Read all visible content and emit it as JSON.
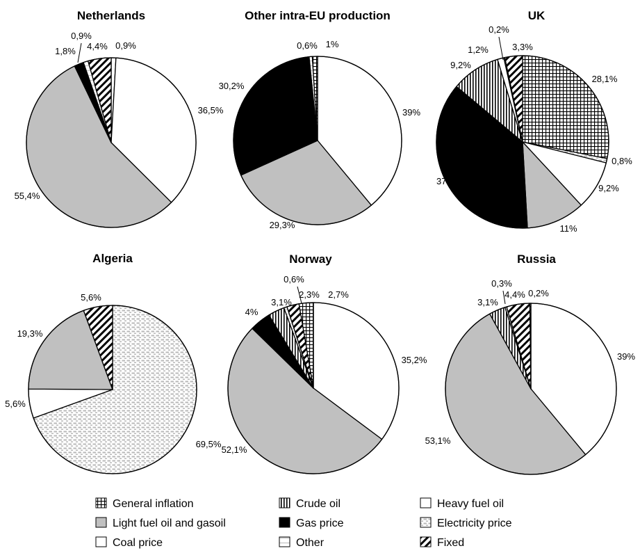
{
  "legend_items": [
    {
      "key": "general_inflation",
      "label": "General inflation"
    },
    {
      "key": "crude_oil",
      "label": "Crude oil"
    },
    {
      "key": "heavy_fuel_oil",
      "label": "Heavy fuel oil"
    },
    {
      "key": "light_fuel_oil_gasoil",
      "label": "Light fuel oil and gasoil"
    },
    {
      "key": "gas_price",
      "label": "Gas price"
    },
    {
      "key": "electricity_price",
      "label": "Electricity price"
    },
    {
      "key": "coal_price",
      "label": "Coal price"
    },
    {
      "key": "other",
      "label": "Other"
    },
    {
      "key": "fixed",
      "label": "Fixed"
    }
  ],
  "chart_data": [
    {
      "type": "pie",
      "title": "Netherlands",
      "slices": [
        {
          "key": "coal_price",
          "value": 0.9,
          "label": "0,9%"
        },
        {
          "key": "heavy_fuel_oil",
          "value": 36.5,
          "label": "36,5%"
        },
        {
          "key": "light_fuel_oil_gasoil",
          "value": 55.4,
          "label": "55,4%"
        },
        {
          "key": "gas_price",
          "value": 1.8,
          "label": "1,8%"
        },
        {
          "key": "other",
          "value": 0.9,
          "label": "0,9%"
        },
        {
          "key": "fixed",
          "value": 4.4,
          "label": "4,4%"
        }
      ]
    },
    {
      "type": "pie",
      "title": "Other intra-EU production",
      "slices": [
        {
          "key": "heavy_fuel_oil",
          "value": 39,
          "label": "39%"
        },
        {
          "key": "light_fuel_oil_gasoil",
          "value": 29.3,
          "label": "29,3%"
        },
        {
          "key": "gas_price",
          "value": 30.2,
          "label": "30,2%"
        },
        {
          "key": "other",
          "value": 0.6,
          "label": "0,6%"
        },
        {
          "key": "general_inflation",
          "value": 1,
          "label": "1%"
        }
      ]
    },
    {
      "type": "pie",
      "title": "UK",
      "slices": [
        {
          "key": "general_inflation",
          "value": 28.1,
          "label": "28,1%"
        },
        {
          "key": "electricity_price",
          "value": 0.8,
          "label": "0,8%"
        },
        {
          "key": "heavy_fuel_oil",
          "value": 9.2,
          "label": "9,2%"
        },
        {
          "key": "light_fuel_oil_gasoil",
          "value": 11,
          "label": "11%"
        },
        {
          "key": "gas_price",
          "value": 37,
          "label": "37%"
        },
        {
          "key": "crude_oil",
          "value": 9.2,
          "label": "9,2%"
        },
        {
          "key": "coal_price",
          "value": 1.2,
          "label": "1,2%"
        },
        {
          "key": "other",
          "value": 0.2,
          "label": "0,2%"
        },
        {
          "key": "fixed",
          "value": 3.3,
          "label": "3,3%"
        }
      ]
    },
    {
      "type": "pie",
      "title": "Algeria",
      "slices": [
        {
          "key": "electricity_price",
          "value": 69.5,
          "label": "69,5%"
        },
        {
          "key": "coal_price",
          "value": 5.6,
          "label": "5,6%"
        },
        {
          "key": "light_fuel_oil_gasoil",
          "value": 19.3,
          "label": "19,3%"
        },
        {
          "key": "fixed",
          "value": 5.6,
          "label": "5,6%"
        }
      ]
    },
    {
      "type": "pie",
      "title": "Norway",
      "slices": [
        {
          "key": "heavy_fuel_oil",
          "value": 35.2,
          "label": "35,2%"
        },
        {
          "key": "light_fuel_oil_gasoil",
          "value": 52.1,
          "label": "52,1%"
        },
        {
          "key": "gas_price",
          "value": 4,
          "label": "4%"
        },
        {
          "key": "crude_oil",
          "value": 3.1,
          "label": "3,1%"
        },
        {
          "key": "other",
          "value": 0.6,
          "label": "0,6%"
        },
        {
          "key": "fixed",
          "value": 2.3,
          "label": "2,3%"
        },
        {
          "key": "general_inflation",
          "value": 2.7,
          "label": "2,7%"
        }
      ]
    },
    {
      "type": "pie",
      "title": "Russia",
      "slices": [
        {
          "key": "heavy_fuel_oil",
          "value": 39,
          "label": "39%"
        },
        {
          "key": "light_fuel_oil_gasoil",
          "value": 53.1,
          "label": "53,1%"
        },
        {
          "key": "crude_oil",
          "value": 3.1,
          "label": "3,1%"
        },
        {
          "key": "other",
          "value": 0.3,
          "label": "0,3%"
        },
        {
          "key": "fixed",
          "value": 4.4,
          "label": "4,4%"
        },
        {
          "key": "general_inflation",
          "value": 0.2,
          "label": "0,2%"
        }
      ]
    }
  ]
}
